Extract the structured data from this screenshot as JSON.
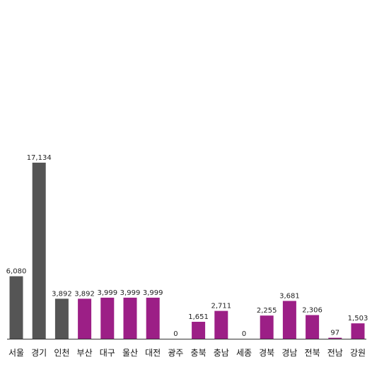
{
  "chart_data": {
    "type": "bar",
    "categories": [
      "서울",
      "경기",
      "인천",
      "부산",
      "대구",
      "울산",
      "대전",
      "광주",
      "충북",
      "충남",
      "세종",
      "경북",
      "경남",
      "전북",
      "전남",
      "강원"
    ],
    "values": [
      6080,
      17134,
      3892,
      3892,
      3999,
      3999,
      3999,
      0,
      1651,
      2711,
      0,
      2255,
      3681,
      2306,
      97,
      1503
    ],
    "value_labels": [
      "6,080",
      "17,134",
      "3,892",
      "3,892",
      "3,999",
      "3,999",
      "3,999",
      "0",
      "1,651",
      "2,711",
      "0",
      "2,255",
      "3,681",
      "2,306",
      "97",
      "1,503"
    ],
    "bar_colors": [
      "#555555",
      "#555555",
      "#555555",
      "#9c1f86",
      "#9c1f86",
      "#9c1f86",
      "#9c1f86",
      "#9c1f86",
      "#9c1f86",
      "#9c1f86",
      "#9c1f86",
      "#9c1f86",
      "#9c1f86",
      "#9c1f86",
      "#9c1f86",
      "#9c1f86"
    ],
    "title": "",
    "xlabel": "",
    "ylabel": "",
    "grid": false,
    "legend": false
  }
}
